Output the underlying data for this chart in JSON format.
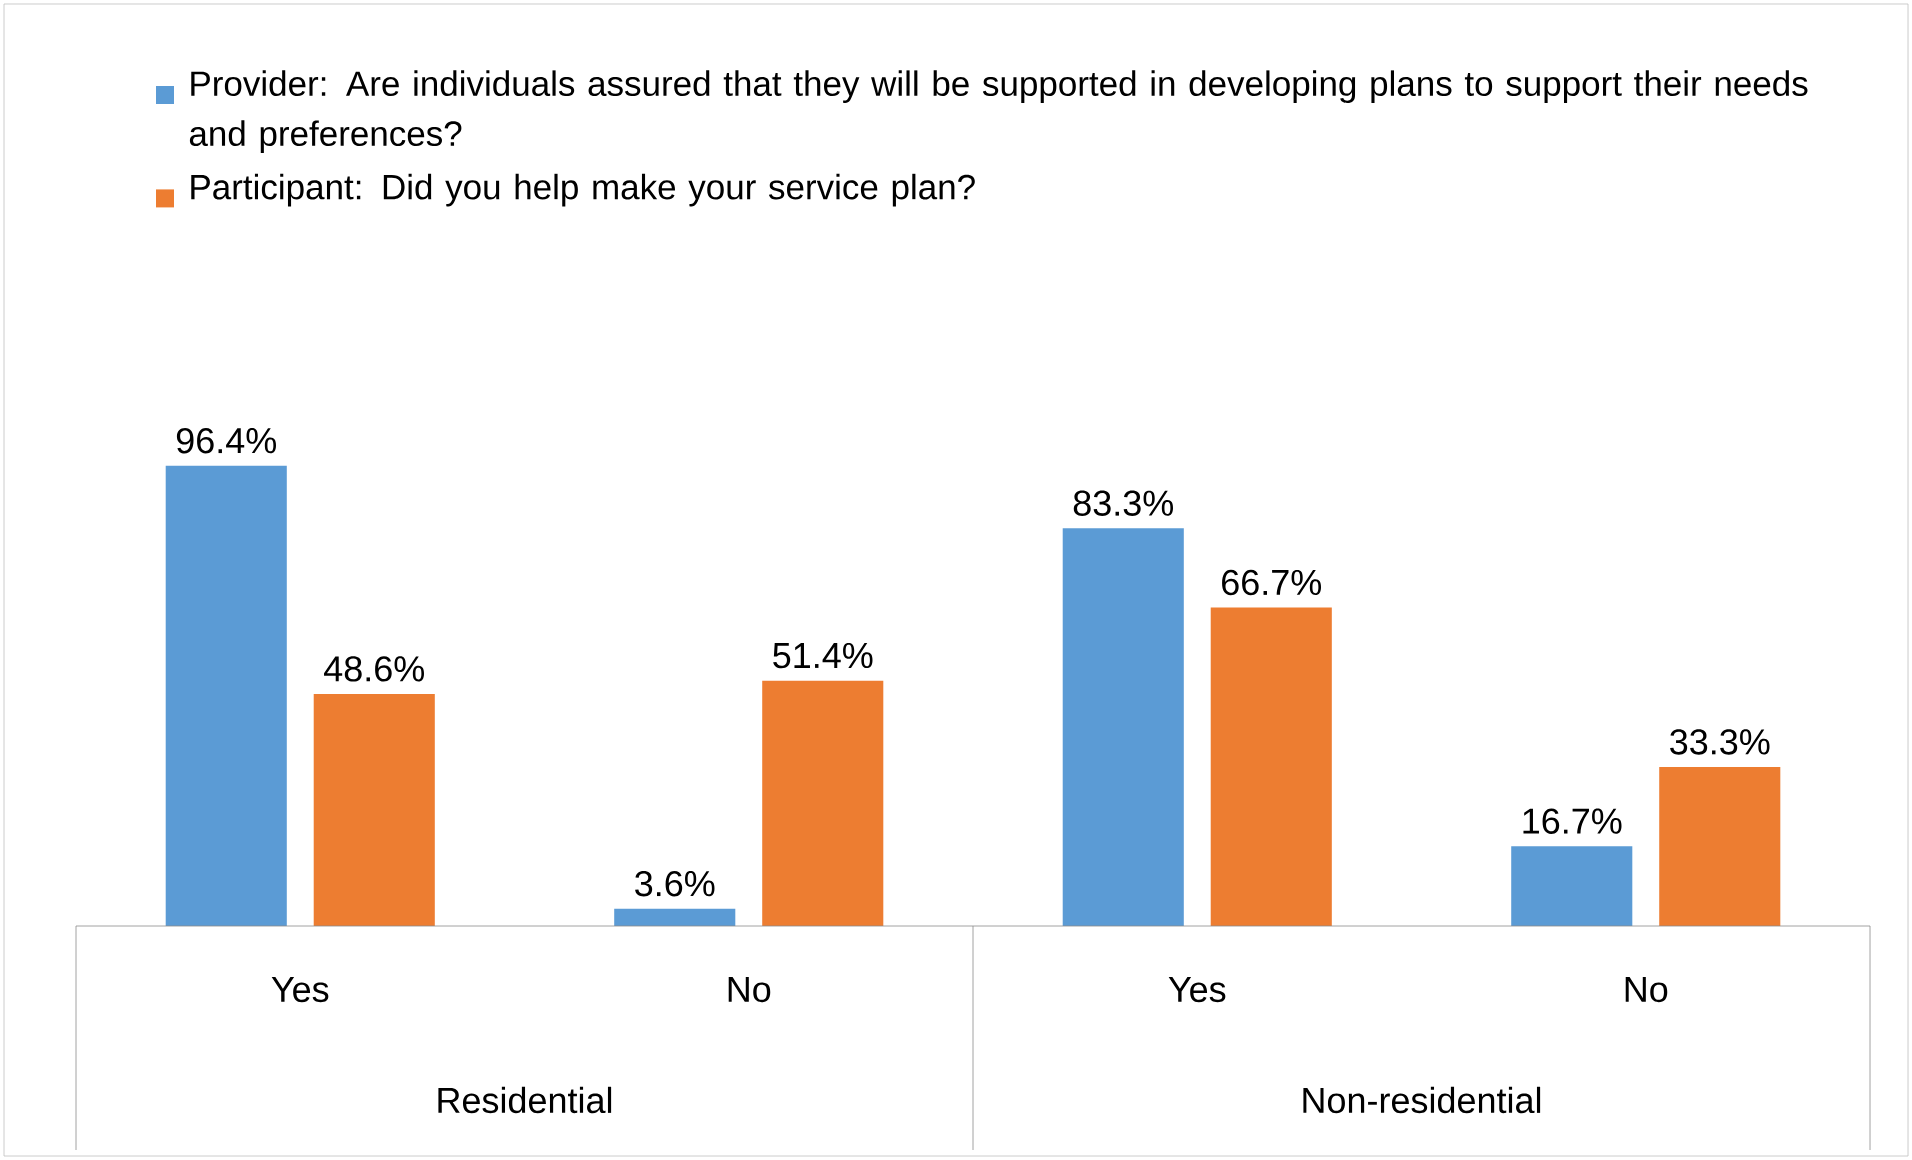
{
  "chart_data": {
    "type": "bar",
    "categories": [
      "Yes",
      "No",
      "Yes",
      "No"
    ],
    "series": [
      {
        "name": "Provider: Are individuals assured that they will be supported in developing plans to support their needs and preferences?",
        "color": "#5b9bd5",
        "values": [
          96.4,
          3.6,
          83.3,
          16.7
        ],
        "value_labels": [
          "96.4%",
          "3.6%",
          "83.3%",
          "16.7%"
        ]
      },
      {
        "name": "Participant: Did you help make your service plan?",
        "color": "#ed7d31",
        "values": [
          48.6,
          51.4,
          66.7,
          33.3
        ],
        "value_labels": [
          "48.6%",
          "51.4%",
          "66.7%",
          "33.3%"
        ]
      }
    ],
    "annotations": [
      "Residential",
      "Non-residential"
    ],
    "legend": "top"
  }
}
